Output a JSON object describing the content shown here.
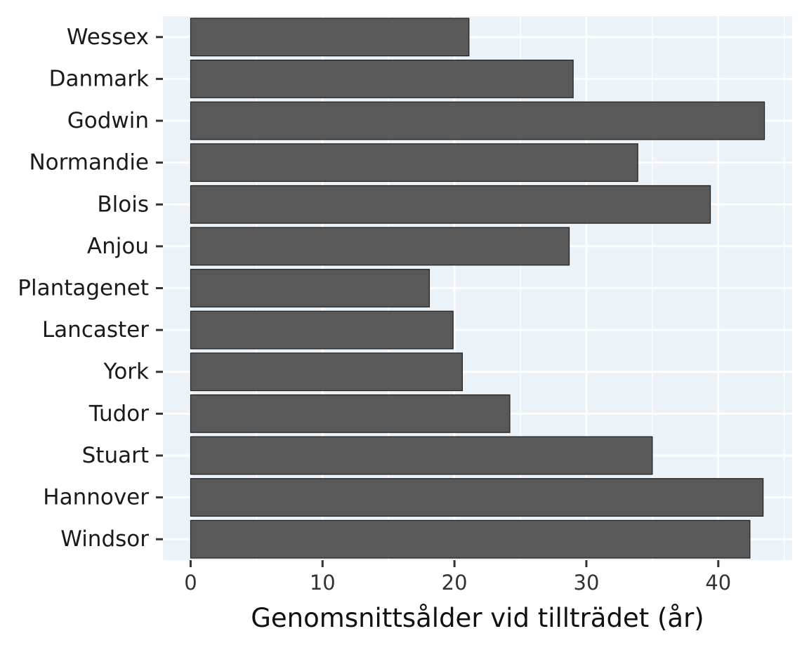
{
  "chart_data": {
    "type": "bar",
    "orientation": "horizontal",
    "title": "",
    "xlabel": "Genomsnittsålder vid tillträdet (år)",
    "ylabel": "",
    "categories": [
      "Wessex",
      "Danmark",
      "Godwin",
      "Normandie",
      "Blois",
      "Anjou",
      "Plantagenet",
      "Lancaster",
      "York",
      "Tudor",
      "Stuart",
      "Hannover",
      "Windsor"
    ],
    "values": [
      21.1,
      29.0,
      43.5,
      33.9,
      39.4,
      28.7,
      18.1,
      19.9,
      20.6,
      24.2,
      35.0,
      43.4,
      42.4
    ],
    "xlim": [
      -2.1,
      45.6
    ],
    "xticks": [
      0,
      10,
      20,
      30,
      40
    ],
    "xtick_labels": [
      "0",
      "10",
      "20",
      "30",
      "40"
    ],
    "grid": true,
    "colors": {
      "panel_background": "#EBF2F8",
      "grid": "#FFFFFF",
      "bar_fill": "#595959",
      "bar_stroke": "#1f1f1f"
    }
  }
}
